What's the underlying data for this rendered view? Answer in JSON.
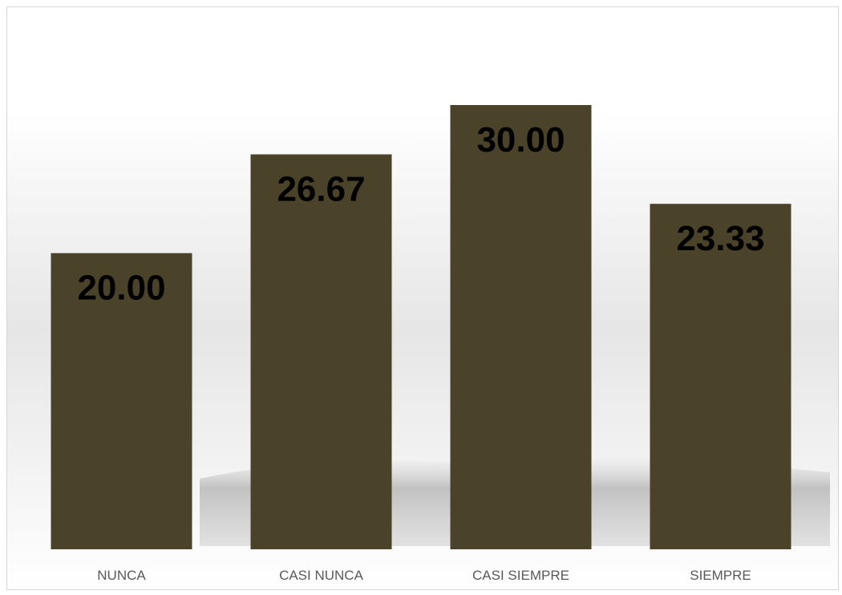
{
  "chart_data": {
    "type": "bar",
    "categories": [
      "NUNCA",
      "CASI NUNCA",
      "CASI SIEMPRE",
      "SIEMPRE"
    ],
    "values": [
      20.0,
      26.67,
      30.0,
      23.33
    ],
    "data_labels": [
      "20.00",
      "26.67",
      "30.00",
      "23.33"
    ],
    "ylim": [
      0,
      30
    ],
    "grid": false,
    "legend": "none",
    "bar_color": "#4a4329",
    "label_color": "#000000",
    "category_label_color": "#595959",
    "background": "gradient-white-to-gray"
  }
}
